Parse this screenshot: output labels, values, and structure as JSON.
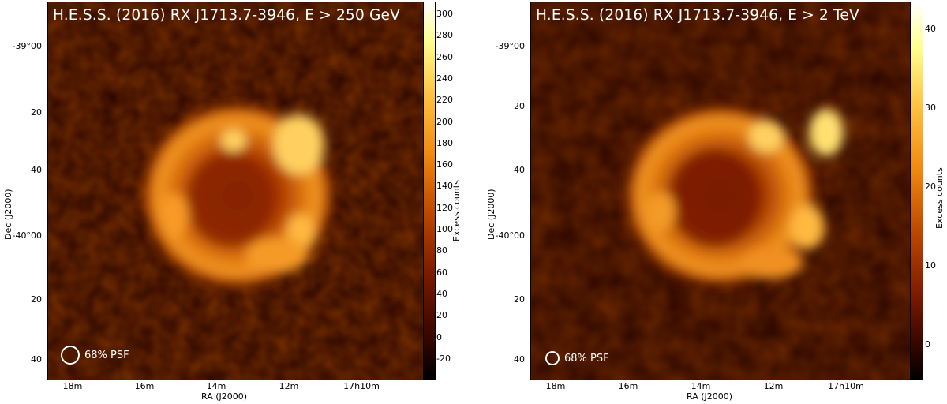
{
  "panels": [
    {
      "title": "H.E.S.S. (2016) RX J1713.7-3946, E > 250 GeV",
      "psf_label": "68% PSF",
      "dec_ticks": [
        "-39°00'",
        "20'",
        "40'",
        "-40°00'",
        "20'",
        "40'"
      ],
      "ra_ticks": [
        "18m",
        "16m",
        "14m",
        "12m",
        "17h10m"
      ],
      "xlabel": "RA (J2000)",
      "ylabel": "Dec (J2000)",
      "colorbar_label": "Excess counts",
      "colorbar_ticks": [
        "300",
        "280",
        "260",
        "240",
        "220",
        "200",
        "180",
        "160",
        "140",
        "120",
        "100",
        "80",
        "60",
        "40",
        "20",
        "0",
        "-20"
      ]
    },
    {
      "title": "H.E.S.S. (2016) RX J1713.7-3946, E > 2 TeV",
      "psf_label": "68% PSF",
      "dec_ticks": [
        "-39°00'",
        "20'",
        "40'",
        "-40°00'",
        "20'",
        "40'"
      ],
      "ra_ticks": [
        "18m",
        "16m",
        "14m",
        "12m",
        "17h10m"
      ],
      "xlabel": "RA (J2000)",
      "ylabel": "Dec (J2000)",
      "colorbar_label": "Excess counts",
      "colorbar_ticks": [
        "40",
        "30",
        "20",
        "10",
        "0"
      ]
    }
  ],
  "colors": {
    "background_map": "#2a0500",
    "colormap": [
      "#000000",
      "#3a0600",
      "#7a1a00",
      "#c14a00",
      "#f08a10",
      "#ffc040",
      "#ffff90",
      "#ffffff"
    ]
  }
}
